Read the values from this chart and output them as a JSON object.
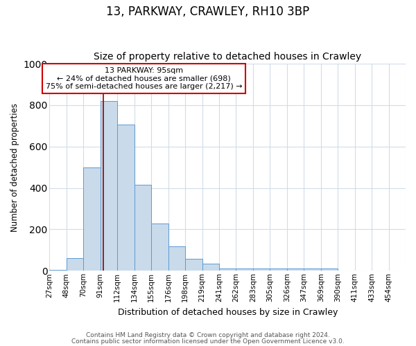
{
  "title": "13, PARKWAY, CRAWLEY, RH10 3BP",
  "subtitle": "Size of property relative to detached houses in Crawley",
  "xlabel": "Distribution of detached houses by size in Crawley",
  "ylabel": "Number of detached properties",
  "bin_labels": [
    "27sqm",
    "48sqm",
    "70sqm",
    "91sqm",
    "112sqm",
    "134sqm",
    "155sqm",
    "176sqm",
    "198sqm",
    "219sqm",
    "241sqm",
    "262sqm",
    "283sqm",
    "305sqm",
    "326sqm",
    "347sqm",
    "369sqm",
    "390sqm",
    "411sqm",
    "433sqm",
    "454sqm"
  ],
  "bar_values": [
    5,
    60,
    500,
    820,
    705,
    415,
    228,
    118,
    57,
    35,
    10,
    10,
    10,
    10,
    10,
    10,
    10,
    0,
    0,
    0,
    0
  ],
  "bar_color": "#c9daea",
  "bar_edge_color": "#5b9bd5",
  "grid_color": "#d0dce8",
  "vline_color": "#8b0000",
  "annotation_text": "13 PARKWAY: 95sqm\n← 24% of detached houses are smaller (698)\n75% of semi-detached houses are larger (2,217) →",
  "annotation_box_color": "#ffffff",
  "annotation_box_edge": "#cc0000",
  "ylim": [
    0,
    1000
  ],
  "bin_starts": [
    27,
    48,
    70,
    91,
    112,
    134,
    155,
    176,
    198,
    219,
    241,
    262,
    283,
    305,
    326,
    347,
    369,
    390,
    411,
    433,
    454
  ],
  "property_sqm": 95,
  "footer_line1": "Contains HM Land Registry data © Crown copyright and database right 2024.",
  "footer_line2": "Contains public sector information licensed under the Open Government Licence v3.0.",
  "title_fontsize": 12,
  "subtitle_fontsize": 10,
  "ylabel_fontsize": 8.5,
  "xlabel_fontsize": 9,
  "tick_fontsize": 7.5,
  "footer_fontsize": 6.5,
  "ann_fontsize": 8
}
